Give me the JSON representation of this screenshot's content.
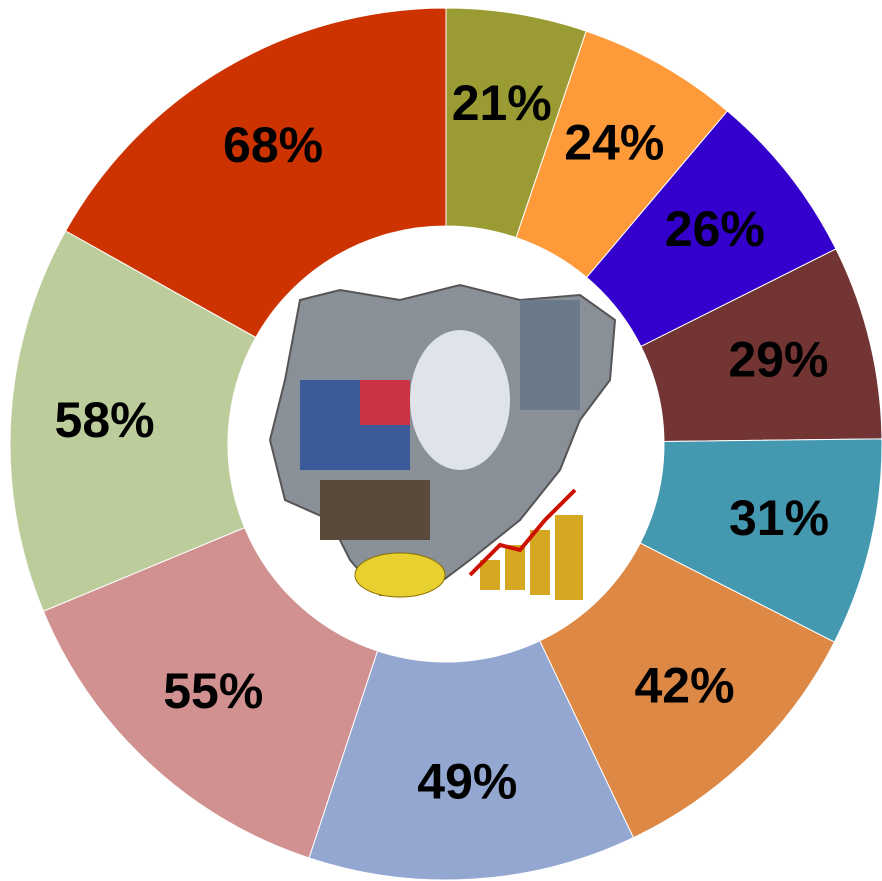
{
  "chart_data": {
    "type": "pie",
    "donut": true,
    "values": [
      21,
      24,
      26,
      29,
      31,
      42,
      49,
      55,
      58,
      68
    ],
    "value_labels": [
      "21%",
      "24%",
      "26%",
      "29%",
      "31%",
      "42%",
      "49%",
      "55%",
      "58%",
      "68%"
    ],
    "colors": [
      "#9b9b33",
      "#ff9a3a",
      "#3300cc",
      "#733434",
      "#4499b0",
      "#dd8844",
      "#93a7d1",
      "#d19191",
      "#bccc9b",
      "#cc3300"
    ]
  }
}
